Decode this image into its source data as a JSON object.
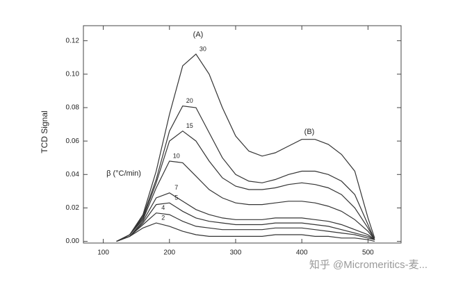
{
  "chart_data": {
    "type": "line",
    "y_label": "TCD Signal",
    "x": [
      120,
      140,
      160,
      180,
      200,
      220,
      240,
      260,
      280,
      300,
      320,
      340,
      360,
      380,
      400,
      420,
      440,
      460,
      480,
      500,
      510
    ],
    "series": [
      {
        "name": "30",
        "color": "#333333",
        "values": [
          0,
          0.004,
          0.016,
          0.042,
          0.076,
          0.105,
          0.112,
          0.1,
          0.08,
          0.063,
          0.054,
          0.051,
          0.053,
          0.057,
          0.061,
          0.061,
          0.058,
          0.052,
          0.042,
          0.014,
          0.002
        ]
      },
      {
        "name": "20",
        "color": "#333333",
        "values": [
          0,
          0.004,
          0.015,
          0.037,
          0.066,
          0.081,
          0.08,
          0.065,
          0.05,
          0.04,
          0.036,
          0.035,
          0.037,
          0.04,
          0.042,
          0.042,
          0.04,
          0.036,
          0.028,
          0.01,
          0.001
        ]
      },
      {
        "name": "15",
        "color": "#333333",
        "values": [
          0,
          0.004,
          0.014,
          0.035,
          0.06,
          0.066,
          0.06,
          0.048,
          0.038,
          0.033,
          0.031,
          0.031,
          0.032,
          0.034,
          0.035,
          0.034,
          0.032,
          0.028,
          0.02,
          0.008,
          0.001
        ]
      },
      {
        "name": "10",
        "color": "#333333",
        "values": [
          0,
          0.004,
          0.013,
          0.032,
          0.048,
          0.047,
          0.039,
          0.031,
          0.026,
          0.023,
          0.022,
          0.022,
          0.023,
          0.024,
          0.024,
          0.023,
          0.021,
          0.018,
          0.013,
          0.006,
          0.001
        ]
      },
      {
        "name": "7",
        "color": "#333333",
        "values": [
          0,
          0.003,
          0.012,
          0.026,
          0.029,
          0.024,
          0.019,
          0.016,
          0.014,
          0.013,
          0.013,
          0.013,
          0.014,
          0.014,
          0.014,
          0.013,
          0.012,
          0.01,
          0.007,
          0.004,
          0.001
        ]
      },
      {
        "name": "5",
        "color": "#333333",
        "values": [
          0,
          0.003,
          0.011,
          0.022,
          0.023,
          0.018,
          0.014,
          0.012,
          0.011,
          0.01,
          0.01,
          0.01,
          0.011,
          0.011,
          0.011,
          0.01,
          0.009,
          0.007,
          0.005,
          0.003,
          0.001
        ]
      },
      {
        "name": "4",
        "color": "#333333",
        "values": [
          0,
          0.003,
          0.01,
          0.017,
          0.016,
          0.012,
          0.009,
          0.008,
          0.007,
          0.007,
          0.007,
          0.007,
          0.008,
          0.008,
          0.008,
          0.007,
          0.006,
          0.005,
          0.004,
          0.002,
          0.001
        ]
      },
      {
        "name": "2",
        "color": "#333333",
        "values": [
          0,
          0.003,
          0.008,
          0.011,
          0.009,
          0.006,
          0.004,
          0.003,
          0.003,
          0.003,
          0.003,
          0.003,
          0.004,
          0.004,
          0.004,
          0.003,
          0.003,
          0.002,
          0.002,
          0.001,
          0
        ]
      }
    ],
    "annotations": [
      "(A)",
      "(B)",
      "β (°C/min)"
    ],
    "xlim": [
      70,
      550
    ],
    "xticks": [
      100,
      200,
      300,
      400,
      500
    ],
    "ylim": [
      -0.001,
      0.129
    ],
    "yticks": [
      {
        "value": 0,
        "label": "0.00"
      },
      0.02,
      0.04,
      0.06,
      0.08,
      {
        "value": 0.1,
        "label": "0.10"
      },
      0.12
    ]
  },
  "watermark": "知乎 @Micromeritics-麦..."
}
